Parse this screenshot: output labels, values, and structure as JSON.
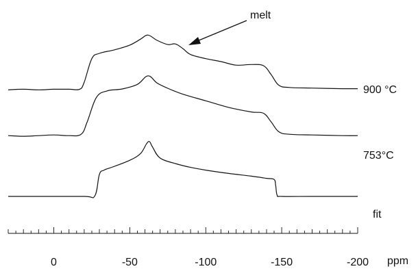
{
  "chart_data": {
    "type": "line",
    "title": "",
    "xlabel": "ppm",
    "xlim": [
      30,
      -200
    ],
    "x_reversed": true,
    "xticks": [
      0,
      -50,
      -100,
      -150,
      -200
    ],
    "xtick_labels": [
      "0",
      "-50",
      "-100",
      "-150",
      "-200"
    ],
    "grid": false,
    "legend": "none",
    "series": [
      {
        "name": "900 °C",
        "x": [
          30,
          20,
          10,
          0,
          -10,
          -17,
          -20,
          -25,
          -30,
          -40,
          -50,
          -57,
          -62,
          -68,
          -75,
          -80,
          -85,
          -90,
          -100,
          -110,
          -120,
          -130,
          -138,
          -143,
          -148,
          -155,
          -170,
          -190,
          -200
        ],
        "y": [
          0.02,
          0.03,
          0.02,
          0.03,
          0.03,
          0.03,
          0.15,
          0.55,
          0.64,
          0.7,
          0.78,
          0.88,
          0.95,
          0.86,
          0.79,
          0.8,
          0.72,
          0.62,
          0.55,
          0.5,
          0.44,
          0.45,
          0.43,
          0.28,
          0.1,
          0.06,
          0.05,
          0.04,
          0.04
        ]
      },
      {
        "name": "753°C",
        "x": [
          30,
          20,
          10,
          0,
          -10,
          -18,
          -22,
          -28,
          -35,
          -45,
          -55,
          -62,
          -68,
          -75,
          -85,
          -100,
          -115,
          -130,
          -138,
          -143,
          -148,
          -155,
          -170,
          -190,
          -200
        ],
        "y": [
          0.04,
          0.03,
          0.04,
          0.05,
          0.04,
          0.06,
          0.25,
          0.62,
          0.72,
          0.75,
          0.82,
          0.95,
          0.84,
          0.76,
          0.67,
          0.57,
          0.47,
          0.4,
          0.38,
          0.25,
          0.1,
          0.06,
          0.05,
          0.04,
          0.04
        ]
      },
      {
        "name": "fit",
        "x": [
          30,
          10,
          -20,
          -27,
          -30,
          -33,
          -40,
          -50,
          -57,
          -61,
          -63,
          -65,
          -70,
          -80,
          -90,
          -100,
          -115,
          -130,
          -140,
          -145,
          -146,
          -147,
          -150,
          -170,
          -200
        ],
        "y": [
          0.0,
          0.0,
          0.0,
          0.01,
          0.4,
          0.48,
          0.55,
          0.66,
          0.78,
          0.96,
          1.0,
          0.9,
          0.7,
          0.6,
          0.53,
          0.48,
          0.42,
          0.37,
          0.33,
          0.31,
          0.2,
          0.02,
          0.0,
          0.0,
          0.0
        ]
      }
    ],
    "annotations": [
      {
        "text": "melt",
        "points_to_x": -82,
        "points_to_series": "900 °C"
      }
    ]
  }
}
